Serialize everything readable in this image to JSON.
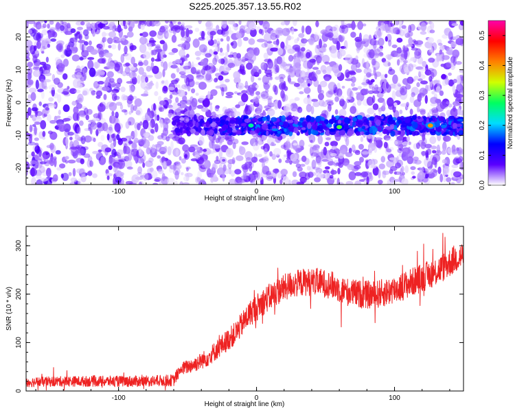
{
  "title": "S225.2025.357.13.55.R02",
  "chart_data": [
    {
      "type": "heatmap",
      "title": "S225.2025.357.13.55.R02",
      "xlabel": "Height of straight line (km)",
      "ylabel": "Frequency (Hz)",
      "xlim": [
        -167,
        150
      ],
      "ylim": [
        -25,
        25
      ],
      "x_ticks": [
        "-100",
        "0",
        "100"
      ],
      "x_tick_values": [
        -100,
        0,
        100
      ],
      "y_ticks": [
        "-20",
        "-10",
        "0",
        "10",
        "20"
      ],
      "y_tick_values": [
        -20,
        -10,
        0,
        10,
        20
      ],
      "colorbar": {
        "label": "Normalized spectral amplitude",
        "range": [
          0,
          0.55
        ],
        "ticks": [
          "0.0",
          "0.1",
          "0.2",
          "0.3",
          "0.4",
          "0.5"
        ],
        "tick_values": [
          0,
          0.1,
          0.2,
          0.3,
          0.4,
          0.5
        ],
        "stops": [
          "#ffffff",
          "#5a00ff",
          "#0000ff",
          "#00dcff",
          "#00ff60",
          "#d0ff00",
          "#ff8000",
          "#ff0000",
          "#ff00aa"
        ]
      },
      "features": [
        {
          "label": "Background speckle",
          "x_range": [
            -167,
            150
          ],
          "freq_range": [
            -25,
            25
          ],
          "amplitude": 0.05
        },
        {
          "label": "Signal band",
          "x_range": [
            -60,
            150
          ],
          "center_freq": -7,
          "halfwidth": 2.5,
          "amplitude": 0.15
        },
        {
          "label": "Peak",
          "x": 126,
          "freq": -7,
          "amplitude": 0.4
        },
        {
          "label": "Peak",
          "x": 60,
          "freq": -7.5,
          "amplitude": 0.3
        },
        {
          "label": "Peak",
          "x": -4,
          "freq": -7,
          "amplitude": 0.25
        }
      ]
    },
    {
      "type": "line",
      "xlabel": "Height of straight line (km)",
      "ylabel": "SNR (10 * v/v)",
      "xlim": [
        -167,
        150
      ],
      "ylim": [
        0,
        340
      ],
      "x_ticks": [
        "-100",
        "0",
        "100"
      ],
      "x_tick_values": [
        -100,
        0,
        100
      ],
      "y_ticks": [
        "0",
        "100",
        "200",
        "300"
      ],
      "y_tick_values": [
        0,
        100,
        200,
        300
      ],
      "color": "#ee2222",
      "trend": {
        "x": [
          -167,
          -140,
          -100,
          -80,
          -60,
          -55,
          -45,
          -35,
          -25,
          -15,
          -5,
          5,
          15,
          25,
          35,
          45,
          55,
          65,
          75,
          85,
          95,
          105,
          115,
          125,
          135,
          145,
          150
        ],
        "y": [
          18,
          20,
          20,
          20,
          22,
          45,
          55,
          70,
          95,
          120,
          160,
          185,
          205,
          220,
          225,
          225,
          218,
          205,
          200,
          198,
          205,
          215,
          228,
          240,
          255,
          275,
          280
        ]
      },
      "noise_amplitude": [
        {
          "x": -167,
          "amp": 10
        },
        {
          "x": -60,
          "amp": 12
        },
        {
          "x": 0,
          "amp": 28
        },
        {
          "x": 150,
          "amp": 30
        }
      ]
    }
  ]
}
